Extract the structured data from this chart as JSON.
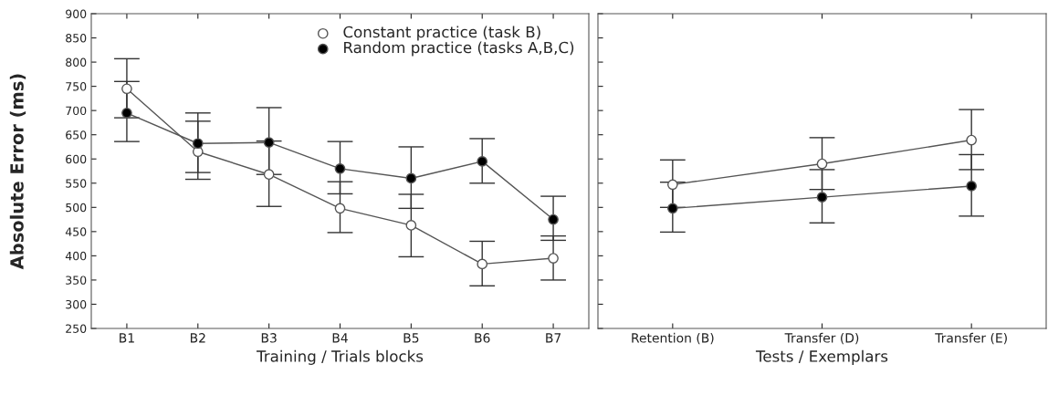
{
  "chart_data": [
    {
      "type": "line",
      "categories": [
        "B1",
        "B2",
        "B3",
        "B4",
        "B5",
        "B6",
        "B7"
      ],
      "xlabel": "Training / Trials blocks",
      "ylabel": "Absolute Error (ms)",
      "ylim": [
        250,
        900
      ],
      "yticks": [
        250,
        300,
        350,
        400,
        450,
        500,
        550,
        600,
        650,
        700,
        750,
        800,
        850,
        900
      ],
      "grid": false,
      "legend": "top right",
      "marker": "circle",
      "line_style": "solid",
      "series": [
        {
          "name": "Constant practice (task B)",
          "color": "#ffffff",
          "values": [
            745,
            615,
            568,
            498,
            463,
            383,
            395
          ],
          "errors": [
            [
              685,
              807
            ],
            [
              558,
              678
            ],
            [
              502,
              637
            ],
            [
              448,
              553
            ],
            [
              398,
              527
            ],
            [
              338,
              430
            ],
            [
              350,
              441
            ]
          ]
        },
        {
          "name": "Random practice (tasks A,B,C)",
          "color": "#000000",
          "values": [
            695,
            632,
            634,
            580,
            560,
            595,
            475
          ],
          "errors": [
            [
              636,
              760
            ],
            [
              572,
              695
            ],
            [
              568,
              706
            ],
            [
              528,
              636
            ],
            [
              498,
              625
            ],
            [
              550,
              642
            ],
            [
              432,
              523
            ]
          ]
        }
      ]
    },
    {
      "type": "line",
      "categories": [
        "Retention (B)",
        "Transfer (D)",
        "Transfer (E)"
      ],
      "xlabel": "Tests / Exemplars",
      "ylim": [
        250,
        900
      ],
      "yticks": [
        250,
        300,
        350,
        400,
        450,
        500,
        550,
        600,
        650,
        700,
        750,
        800,
        850,
        900
      ],
      "tick_labels": "x",
      "grid": false,
      "marker": "circle",
      "line_style": "solid",
      "series": [
        {
          "color": "#ffffff",
          "values": [
            547,
            590,
            639
          ],
          "errors": [
            [
              500,
              598
            ],
            [
              537,
              644
            ],
            [
              578,
              702
            ]
          ]
        },
        {
          "color": "#000000",
          "values": [
            498,
            521,
            544
          ],
          "errors": [
            [
              449,
              552
            ],
            [
              468,
              578
            ],
            [
              482,
              609
            ]
          ]
        }
      ]
    }
  ]
}
